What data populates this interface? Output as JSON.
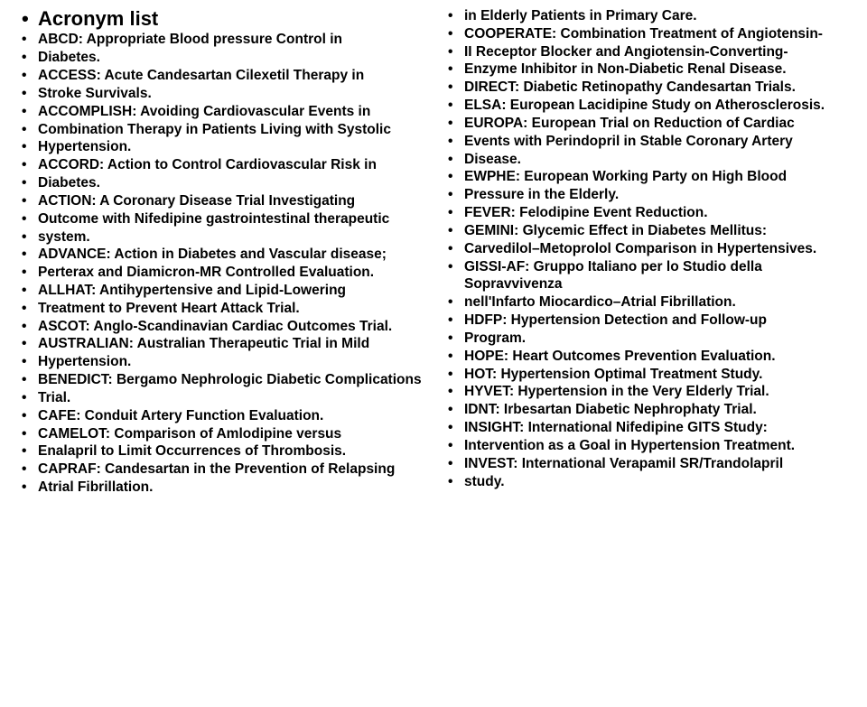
{
  "title": "Acronym list",
  "left": [
    "ABCD: Appropriate Blood pressure Control in",
    "Diabetes.",
    "ACCESS: Acute Candesartan Cilexetil Therapy in",
    "Stroke Survivals.",
    "ACCOMPLISH: Avoiding Cardiovascular Events in",
    "Combination Therapy in Patients Living with Systolic",
    "Hypertension.",
    "ACCORD: Action to Control Cardiovascular Risk in",
    "Diabetes.",
    "ACTION: A Coronary Disease Trial Investigating",
    "Outcome with Nifedipine gastrointestinal therapeutic",
    "system.",
    "ADVANCE: Action in Diabetes and Vascular disease;",
    "Perterax and Diamicron-MR Controlled Evaluation.",
    "ALLHAT: Antihypertensive and Lipid-Lowering",
    "Treatment to Prevent Heart Attack Trial.",
    "ASCOT: Anglo-Scandinavian Cardiac Outcomes Trial.",
    "AUSTRALIAN: Australian Therapeutic Trial in Mild",
    "Hypertension.",
    "BENEDICT: Bergamo Nephrologic Diabetic Complications",
    "Trial.",
    "CAFE: Conduit Artery Function Evaluation.",
    "CAMELOT: Comparison of Amlodipine versus",
    "Enalapril to Limit Occurrences of Thrombosis.",
    "CAPRAF: Candesartan in the Prevention of Relapsing",
    "Atrial Fibrillation."
  ],
  "right": [
    "in Elderly Patients in Primary Care.",
    "COOPERATE: Combination Treatment of Angiotensin-",
    "II Receptor Blocker and Angiotensin-Converting-",
    "Enzyme Inhibitor in Non-Diabetic Renal Disease.",
    "DIRECT: Diabetic Retinopathy Candesartan Trials.",
    "ELSA: European Lacidipine Study on Atherosclerosis.",
    "EUROPA: European Trial on Reduction of Cardiac",
    "Events with Perindopril in Stable Coronary Artery",
    "Disease.",
    "EWPHE: European Working Party on High Blood",
    "Pressure in the Elderly.",
    "FEVER: Felodipine Event Reduction.",
    "GEMINI: Glycemic Effect in Diabetes Mellitus:",
    "Carvedilol–Metoprolol Comparison in Hypertensives.",
    "GISSI-AF: Gruppo Italiano per lo Studio della Sopravvivenza",
    "nell'Infarto Miocardico–Atrial Fibrillation.",
    "HDFP: Hypertension Detection and Follow-up",
    "Program.",
    "HOPE: Heart Outcomes Prevention Evaluation.",
    "HOT: Hypertension Optimal Treatment Study.",
    "HYVET: Hypertension in the Very Elderly Trial.",
    "IDNT: Irbesartan Diabetic Nephrophaty Trial.",
    "INSIGHT: International Nifedipine GITS Study:",
    "Intervention as a Goal in Hypertension Treatment.",
    "INVEST: International Verapamil SR/Trandolapril",
    "study."
  ]
}
